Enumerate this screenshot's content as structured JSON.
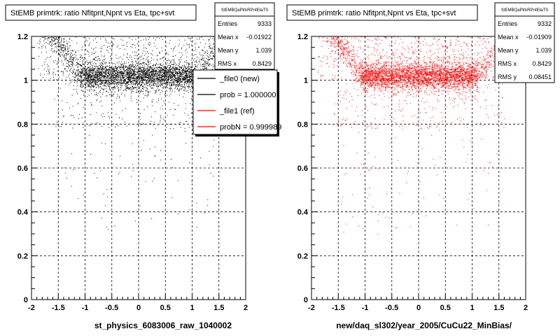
{
  "chart_data": [
    {
      "type": "scatter",
      "title": "StEMB primtrk: ratio Nfitpnt,Npnt vs Eta, tpc+svt",
      "xlabel": "st_physics_6083006_raw_1040002",
      "ylabel": "",
      "xlim": [
        -2,
        2
      ],
      "ylim": [
        0,
        1.2
      ],
      "x_ticks": [
        "-2",
        "-1.5",
        "-1",
        "-0.5",
        "0",
        "0.5",
        "1",
        "1.5",
        "2"
      ],
      "y_ticks": [
        "0",
        "0.2",
        "0.4",
        "0.6",
        "0.8",
        "1",
        "1.2"
      ],
      "grid": true,
      "marker_color": "#000000",
      "stats": {
        "name": "StEMBQaPtrkRPntEtaTS",
        "rows": [
          {
            "label": "Entries",
            "value": "9333"
          },
          {
            "label": "Mean x",
            "value": "-0.01922"
          },
          {
            "label": "Mean y",
            "value": "1.039"
          },
          {
            "label": "RMS x",
            "value": "0.8429"
          }
        ]
      },
      "legend": {
        "placement": "right",
        "entries": [
          {
            "label": "_file0 (new)",
            "color": "#000000"
          },
          {
            "label": "prob = 1.000000",
            "color": "#000000"
          },
          {
            "label": "_file1 (ref)",
            "color": "#ff0000"
          },
          {
            "label": "probN = 0.999989",
            "color": "#ff0000"
          }
        ]
      },
      "density": {
        "band_center": 1.02,
        "band_width": 0.03,
        "edge_band_center": 1.13,
        "sparse_min": 0.3
      }
    },
    {
      "type": "scatter",
      "title": "StEMB primtrk: ratio Nfitpnt,Npnt vs Eta, tpc+svt",
      "xlabel": "new/daq_sl302/year_2005/CuCu22_MinBias/",
      "ylabel": "",
      "xlim": [
        -2,
        2
      ],
      "ylim": [
        0,
        1.2
      ],
      "x_ticks": [
        "-2",
        "-1.5",
        "-1",
        "-0.5",
        "0",
        "0.5",
        "1",
        "1.5",
        "2"
      ],
      "y_ticks": [
        "0",
        "0.2",
        "0.4",
        "0.6",
        "0.8",
        "1",
        "1.2"
      ],
      "grid": true,
      "marker_color": "#ff0000",
      "stats": {
        "name": "StEMBQaPtrkRPntEtaTS",
        "rows": [
          {
            "label": "Entries",
            "value": "9332"
          },
          {
            "label": "Mean x",
            "value": "-0.01909"
          },
          {
            "label": "Mean y",
            "value": "1.039"
          },
          {
            "label": "RMS x",
            "value": "0.8429"
          },
          {
            "label": "RMS y",
            "value": "0.08451"
          }
        ]
      },
      "density": {
        "band_center": 1.02,
        "band_width": 0.03,
        "edge_band_center": 1.13,
        "sparse_min": 0.3
      }
    }
  ]
}
